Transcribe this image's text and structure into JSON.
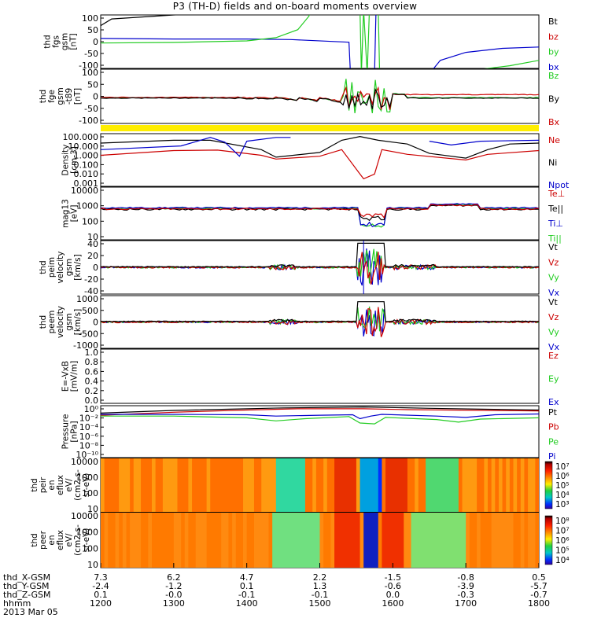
{
  "title": "P3 (TH-D) fields and on-board moments overview",
  "colors": {
    "black": "#000000",
    "red": "#cc0000",
    "green": "#22cc22",
    "blue": "#0000cc",
    "yellow": "#ffee00"
  },
  "chart_data": {
    "type": "line",
    "title": "P3 (TH-D) fields and on-board moments overview",
    "date": "2013 Mar 05",
    "x_axis": {
      "label": "hhmm",
      "ticks": [
        "1200",
        "1300",
        "1400",
        "1500",
        "1600",
        "1700",
        "1800"
      ],
      "range": [
        "1200",
        "1800"
      ]
    },
    "position_rows": [
      {
        "label": "thd_X-GSM",
        "values": [
          "7.3",
          "6.2",
          "4.7",
          "2.2",
          "-1.5",
          "-0.8",
          "0.5"
        ]
      },
      {
        "label": "thd_Y-GSM",
        "values": [
          "-2.4",
          "-1.2",
          "0.1",
          "1.3",
          "-0.6",
          "-3.9",
          "-5.7"
        ]
      },
      {
        "label": "thd_Z-GSM",
        "values": [
          "0.1",
          "-0.0",
          "-0.1",
          "-0.1",
          "0.0",
          "-0.3",
          "-0.7"
        ]
      }
    ],
    "panels": [
      {
        "id": "fgs",
        "ylabel": [
          "thd",
          "fgs",
          "gsm",
          "[nT]"
        ],
        "yticks": [
          "100",
          "50",
          "0",
          "-50",
          "-100"
        ],
        "ylim": [
          -100,
          100
        ],
        "legend": [
          {
            "text": "Bt",
            "color": "black"
          },
          {
            "text": "bz",
            "color": "red"
          },
          {
            "text": "by",
            "color": "green"
          },
          {
            "text": "bx",
            "color": "blue"
          }
        ]
      },
      {
        "id": "fge",
        "ylabel": [
          "thd",
          "fge",
          "gsm",
          "-t89",
          "[nT]"
        ],
        "yticks": [
          "100",
          "50",
          "0",
          "-50",
          "-100"
        ],
        "ylim": [
          -125,
          125
        ],
        "legend": [
          {
            "text": "Bz",
            "color": "green"
          },
          {
            "text": "By",
            "color": "black"
          },
          {
            "text": "Bx",
            "color": "red"
          }
        ]
      },
      {
        "id": "density",
        "ylabel": [
          "Density",
          "[cm-3]"
        ],
        "yticks": [
          "100.000",
          "10.000",
          "1.000",
          "0.100",
          "0.010",
          "0.001"
        ],
        "log": true,
        "legend": [
          {
            "text": "Ne",
            "color": "red"
          },
          {
            "text": "Ni",
            "color": "black"
          },
          {
            "text": "Npot",
            "color": "blue"
          }
        ]
      },
      {
        "id": "temp",
        "ylabel": [
          "mag13",
          "[eV]"
        ],
        "yticks": [
          "10000",
          "1000",
          "100",
          "10"
        ],
        "log": true,
        "legend": [
          {
            "text": "Te⊥",
            "color": "red"
          },
          {
            "text": "Te||",
            "color": "black"
          },
          {
            "text": "Ti⊥",
            "color": "blue"
          },
          {
            "text": "Ti||",
            "color": "green"
          }
        ]
      },
      {
        "id": "peim",
        "ylabel": [
          "thd",
          "peim",
          "velocity",
          "gsm",
          "[km/s]"
        ],
        "yticks": [
          "40",
          "20",
          "0",
          "-20",
          "-40"
        ],
        "ylim": [
          -40,
          40
        ],
        "legend": [
          {
            "text": "Vt",
            "color": "black"
          },
          {
            "text": "Vz",
            "color": "red"
          },
          {
            "text": "Vy",
            "color": "green"
          },
          {
            "text": "Vx",
            "color": "blue"
          }
        ]
      },
      {
        "id": "peem",
        "ylabel": [
          "thd",
          "peem",
          "velocity",
          "gsm",
          "[km/s]"
        ],
        "yticks": [
          "1000",
          "500",
          "0",
          "-500",
          "-1000"
        ],
        "ylim": [
          -1300,
          1300
        ],
        "legend": [
          {
            "text": "Vt",
            "color": "black"
          },
          {
            "text": "Vz",
            "color": "red"
          },
          {
            "text": "Vy",
            "color": "green"
          },
          {
            "text": "Vx",
            "color": "blue"
          }
        ]
      },
      {
        "id": "exb",
        "ylabel": [
          "E=-VxB",
          "[mV/m]"
        ],
        "yticks": [
          "1.0",
          "0.8",
          "0.6",
          "0.4",
          "0.2",
          "0.0"
        ],
        "ylim": [
          0,
          1
        ],
        "legend": [
          {
            "text": "Ez",
            "color": "red"
          },
          {
            "text": "Ey",
            "color": "green"
          },
          {
            "text": "Ex",
            "color": "blue"
          }
        ]
      },
      {
        "id": "pressure",
        "ylabel": [
          "Pressure",
          "[nPa]"
        ],
        "yticks": [
          "10⁰",
          "10⁻²",
          "10⁻⁴",
          "10⁻⁶",
          "10⁻⁸",
          "10⁻¹⁰"
        ],
        "log": true,
        "legend": [
          {
            "text": "Pt",
            "color": "black"
          },
          {
            "text": "Pb",
            "color": "red"
          },
          {
            "text": "Pe",
            "color": "green"
          },
          {
            "text": "Pi",
            "color": "blue"
          }
        ]
      },
      {
        "id": "peir",
        "ylabel": [
          "thd",
          "peir",
          "en",
          "eflux",
          "eV/",
          "(cm2-s-",
          "sr-eV)"
        ],
        "yticks": [
          "10000",
          "1000",
          "100",
          "10"
        ],
        "type": "heatmap",
        "colorbar": [
          "10⁷",
          "10⁶",
          "10⁵",
          "10⁴",
          "10³"
        ]
      },
      {
        "id": "peer",
        "ylabel": [
          "thd",
          "peer",
          "en",
          "eflux",
          "eV/",
          "(cm2-s-",
          "sr-eV)"
        ],
        "yticks": [
          "10000",
          "1000",
          "100",
          "10"
        ],
        "type": "heatmap",
        "colorbar": [
          "10⁸",
          "10⁷",
          "10⁶",
          "10⁵",
          "10⁴"
        ]
      }
    ],
    "series_key_points": {
      "density_Ni_hhmm_log10": [
        [
          1200,
          1.3
        ],
        [
          1300,
          1.6
        ],
        [
          1350,
          1.6
        ],
        [
          1420,
          0.6
        ],
        [
          1440,
          -0.2
        ],
        [
          1500,
          0.3
        ],
        [
          1530,
          1.6
        ],
        [
          1555,
          2.0
        ],
        [
          1580,
          1.6
        ],
        [
          1620,
          1.2
        ],
        [
          1650,
          0.2
        ],
        [
          1700,
          -0.3
        ],
        [
          1730,
          0.6
        ],
        [
          1760,
          1.2
        ],
        [
          1800,
          1.3
        ]
      ],
      "density_Ne_hhmm_log10": [
        [
          1200,
          0.0
        ],
        [
          1300,
          0.5
        ],
        [
          1360,
          0.55
        ],
        [
          1420,
          0.0
        ],
        [
          1440,
          -0.4
        ],
        [
          1500,
          -0.1
        ],
        [
          1530,
          0.6
        ],
        [
          1555,
          -2.0
        ],
        [
          1560,
          -2.5
        ],
        [
          1575,
          -2.0
        ],
        [
          1585,
          0.6
        ],
        [
          1620,
          0.1
        ],
        [
          1700,
          -0.5
        ],
        [
          1730,
          0.1
        ],
        [
          1800,
          0.5
        ]
      ]
    }
  }
}
